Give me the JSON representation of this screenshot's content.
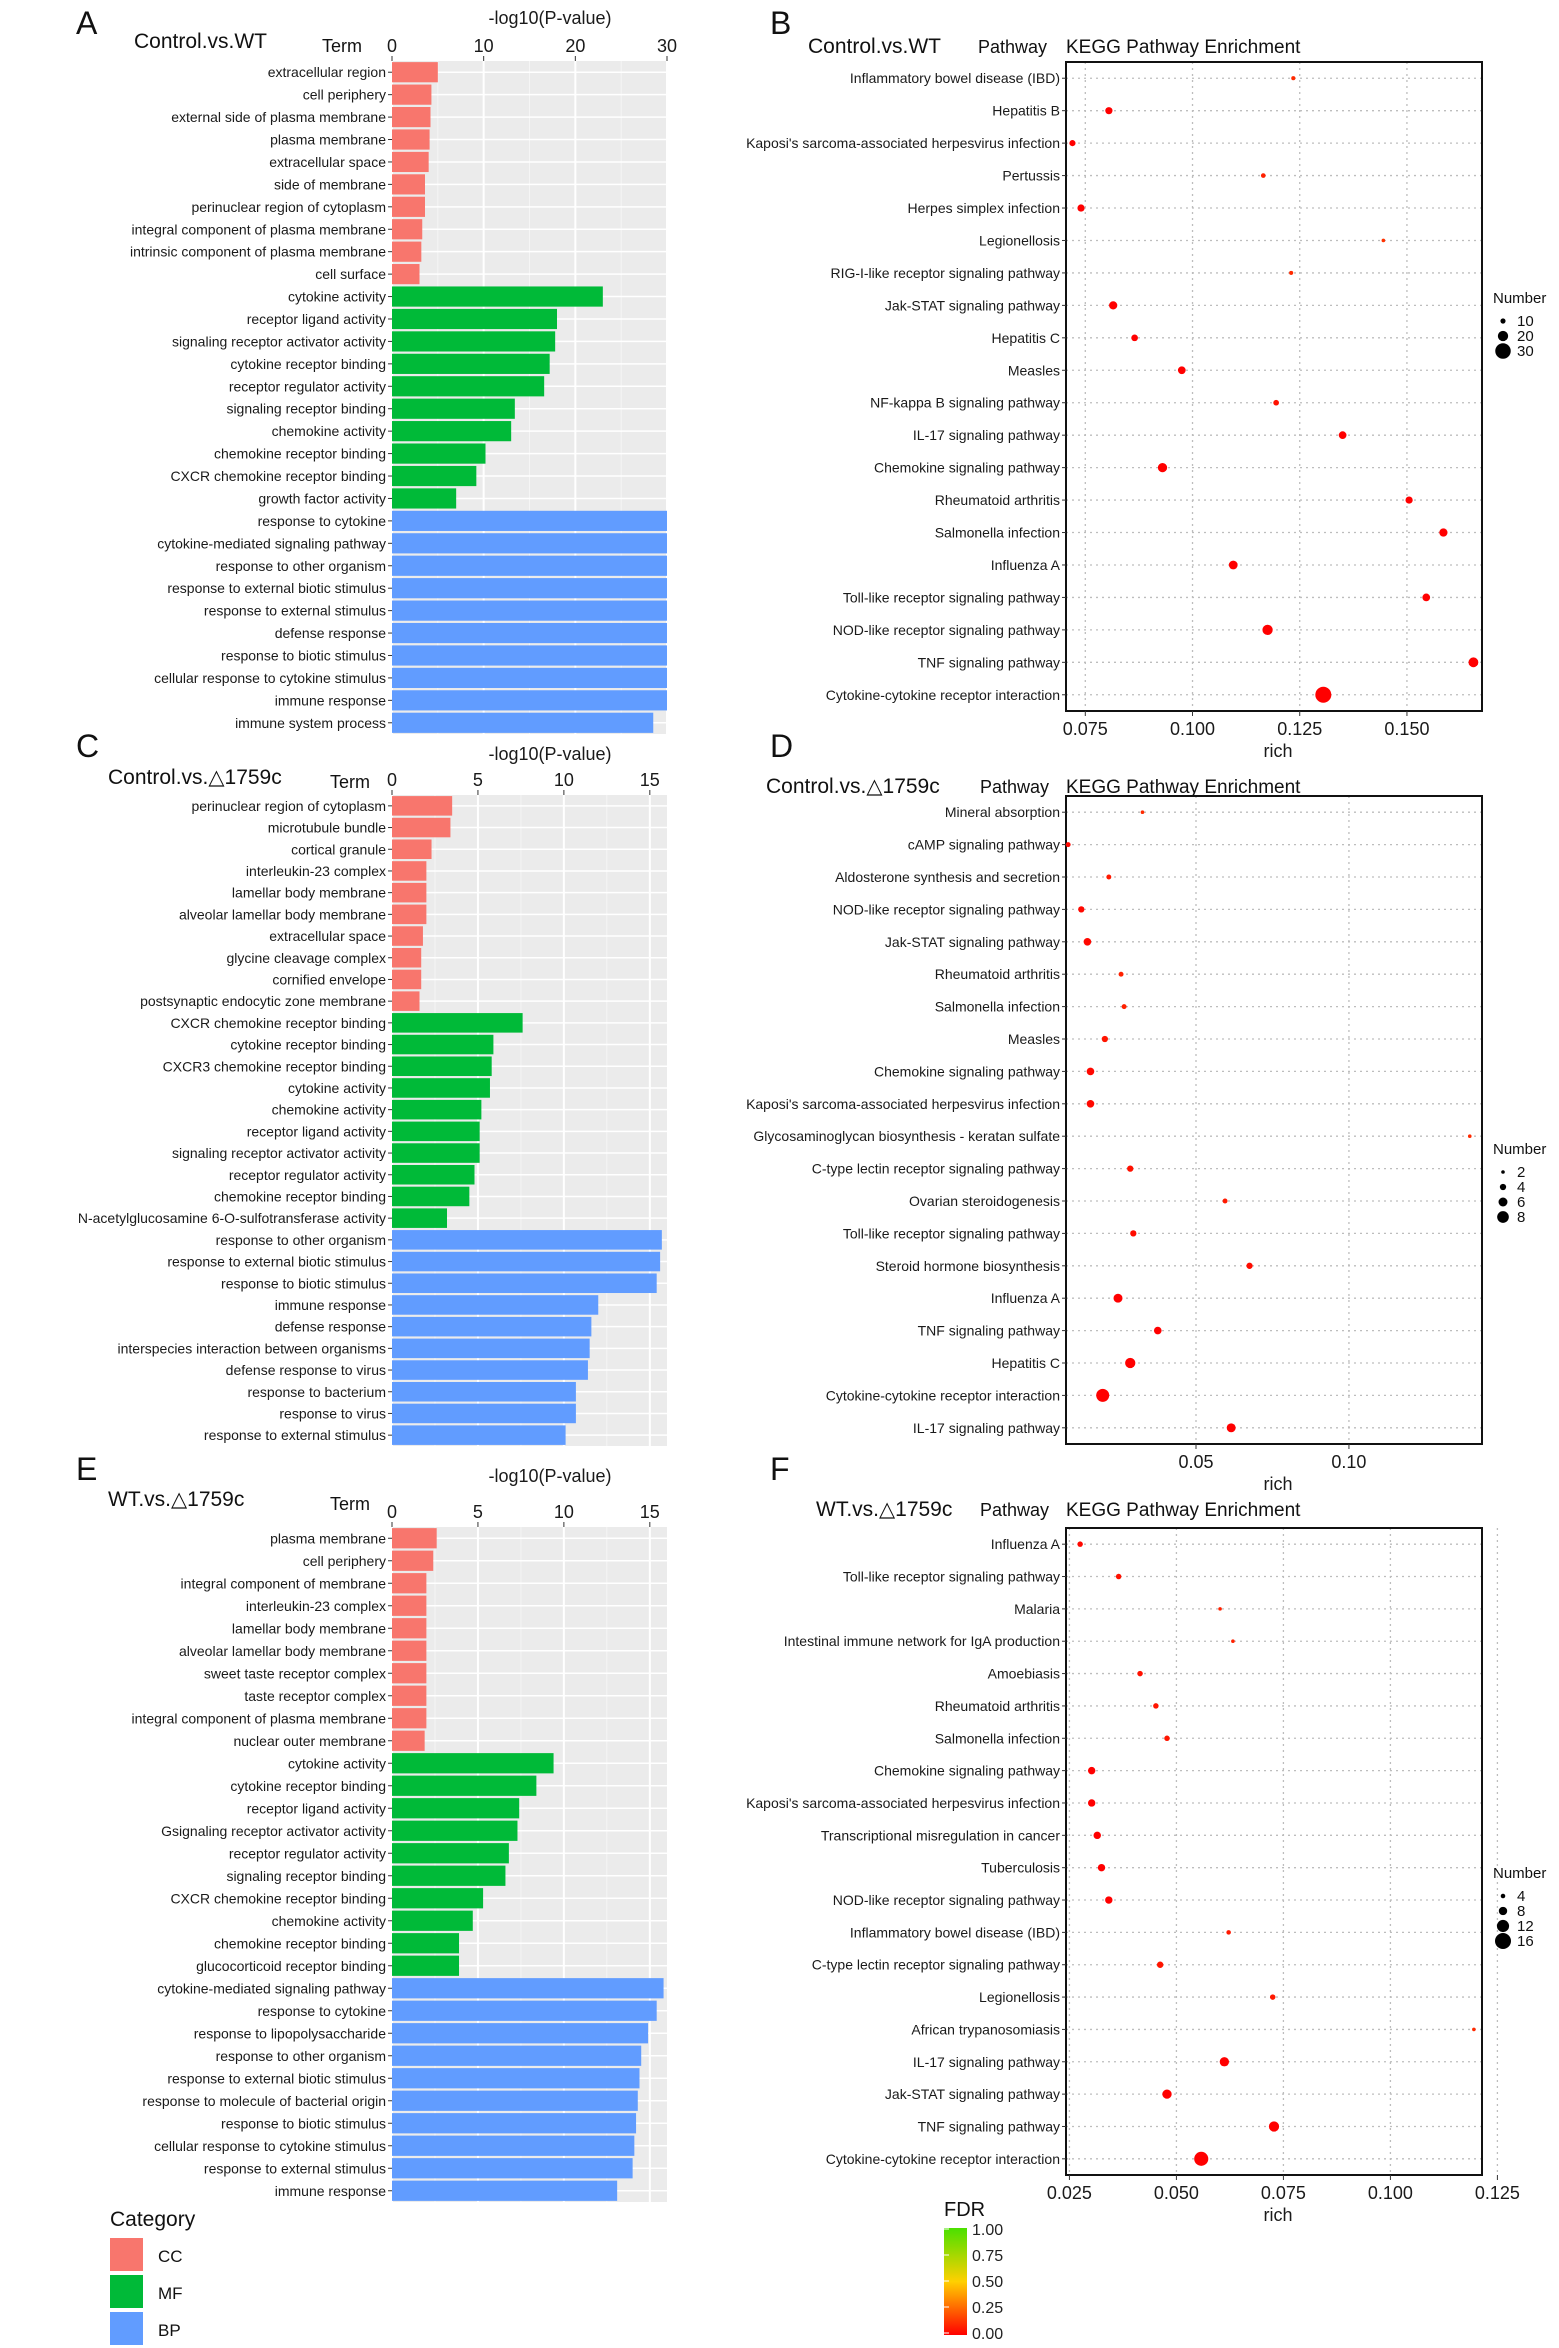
{
  "panels": {
    "A": "A",
    "B": "B",
    "C": "C",
    "D": "D",
    "E": "E",
    "F": "F"
  },
  "legend": {
    "category": {
      "title": "Category",
      "items": [
        {
          "label": "CC",
          "color": "#F8766D"
        },
        {
          "label": "MF",
          "color": "#00BA38"
        },
        {
          "label": "BP",
          "color": "#619CFF"
        }
      ]
    },
    "fdr": {
      "title": "FDR",
      "ticks": [
        "1.00",
        "0.75",
        "0.50",
        "0.25",
        "0.00"
      ],
      "colors": [
        "#4AE000",
        "#FFD000",
        "#FF0000"
      ]
    }
  },
  "chart_data": [
    {
      "id": "A",
      "type": "bar",
      "orientation": "horizontal",
      "title": "Control.vs.WT",
      "xlabel": "-log10(P-value)",
      "ylabel": "Term",
      "xlim": [
        0,
        30
      ],
      "xticks": [
        0,
        10,
        20,
        30
      ],
      "categories": [
        "extracellular region",
        "cell periphery",
        "external side of plasma membrane",
        "plasma membrane",
        "extracellular space",
        "side of membrane",
        "perinuclear region of cytoplasm",
        "integral component of plasma membrane",
        "intrinsic component of plasma membrane",
        "cell surface",
        "cytokine activity",
        "receptor ligand activity",
        "signaling receptor activator activity",
        "cytokine receptor binding",
        "receptor regulator activity",
        "signaling receptor binding",
        "chemokine activity",
        "chemokine receptor binding",
        "CXCR chemokine receptor binding",
        "growth factor activity",
        "response to cytokine",
        "cytokine-mediated signaling pathway",
        "response to other organism",
        "response to external biotic stimulus",
        "response to external stimulus",
        "defense response",
        "response to biotic stimulus",
        "cellular response to cytokine stimulus",
        "immune response",
        "immune system process"
      ],
      "values": [
        5.0,
        4.3,
        4.2,
        4.1,
        4.0,
        3.6,
        3.6,
        3.3,
        3.2,
        3.0,
        23.0,
        18.0,
        17.8,
        17.2,
        16.6,
        13.4,
        13.0,
        10.2,
        9.2,
        7.0,
        30.0,
        30.0,
        30.0,
        30.0,
        30.0,
        30.0,
        30.0,
        30.0,
        30.0,
        28.5
      ],
      "groups": [
        "CC",
        "CC",
        "CC",
        "CC",
        "CC",
        "CC",
        "CC",
        "CC",
        "CC",
        "CC",
        "MF",
        "MF",
        "MF",
        "MF",
        "MF",
        "MF",
        "MF",
        "MF",
        "MF",
        "MF",
        "BP",
        "BP",
        "BP",
        "BP",
        "BP",
        "BP",
        "BP",
        "BP",
        "BP",
        "BP"
      ]
    },
    {
      "id": "B",
      "type": "scatter",
      "title": "Control.vs.WT",
      "subtitle": "KEGG Pathway Enrichment",
      "xlabel": "rich",
      "ylabel": "Pathway",
      "xlim": [
        0.0705,
        0.1675
      ],
      "xticks": [
        0.075,
        0.1,
        0.125,
        0.15
      ],
      "xtick_labels": [
        "0.075",
        "0.100",
        "0.125",
        "0.150"
      ],
      "size_legend": {
        "title": "Number",
        "values": [
          10,
          20,
          30
        ]
      },
      "categories": [
        "Inflammatory bowel disease (IBD)",
        "Hepatitis B",
        "Kaposi's sarcoma-associated herpesvirus infection",
        "Pertussis",
        "Herpes simplex infection",
        "Legionellosis",
        "RIG-I-like receptor signaling pathway",
        "Jak-STAT signaling pathway",
        "Hepatitis C",
        "Measles",
        "NF-kappa B signaling pathway",
        "IL-17 signaling pathway",
        "Chemokine signaling pathway",
        "Rheumatoid arthritis",
        "Salmonella infection",
        "Influenza A",
        "Toll-like receptor signaling pathway",
        "NOD-like receptor signaling pathway",
        "TNF signaling pathway",
        "Cytokine-cytokine receptor interaction"
      ],
      "x": [
        0.1235,
        0.0805,
        0.072,
        0.1165,
        0.074,
        0.1445,
        0.123,
        0.0815,
        0.0865,
        0.0975,
        0.1195,
        0.135,
        0.093,
        0.1505,
        0.1585,
        0.1095,
        0.1545,
        0.1175,
        0.1655,
        0.1305
      ],
      "number": [
        8,
        14,
        12,
        9,
        14,
        7,
        8,
        16,
        13,
        15,
        11,
        15,
        18,
        14,
        16,
        17,
        15,
        20,
        19,
        31
      ],
      "fdr": [
        0.1,
        0.0,
        0.0,
        0.08,
        0.0,
        0.12,
        0.1,
        0.0,
        0.0,
        0.0,
        0.04,
        0.0,
        0.0,
        0.0,
        0.0,
        0.0,
        0.0,
        0.0,
        0.0,
        0.0
      ]
    },
    {
      "id": "C",
      "type": "bar",
      "orientation": "horizontal",
      "title": "Control.vs.△1759c",
      "xlabel": "-log10(P-value)",
      "ylabel": "Term",
      "xlim": [
        0,
        16
      ],
      "xticks": [
        0,
        5,
        10,
        15
      ],
      "categories": [
        "perinuclear region of cytoplasm",
        "microtubule bundle",
        "cortical granule",
        "interleukin-23 complex",
        "lamellar body membrane",
        "alveolar lamellar body membrane",
        "extracellular space",
        "glycine cleavage complex",
        "cornified envelope",
        "postsynaptic endocytic zone membrane",
        "CXCR chemokine receptor binding",
        "cytokine receptor binding",
        "CXCR3 chemokine receptor binding",
        "cytokine activity",
        "chemokine activity",
        "receptor ligand activity",
        "signaling receptor activator activity",
        "receptor regulator activity",
        "chemokine receptor binding",
        "N-acetylglucosamine 6-O-sulfotransferase activity",
        "response to other organism",
        "response to external biotic stimulus",
        "response to biotic stimulus",
        "immune response",
        "defense response",
        "interspecies interaction between organisms",
        "defense response to virus",
        "response to bacterium",
        "response to virus",
        "response to external stimulus"
      ],
      "values": [
        3.5,
        3.4,
        2.3,
        2.0,
        2.0,
        2.0,
        1.8,
        1.7,
        1.7,
        1.6,
        7.6,
        5.9,
        5.8,
        5.7,
        5.2,
        5.1,
        5.1,
        4.8,
        4.5,
        3.2,
        15.7,
        15.6,
        15.4,
        12.0,
        11.6,
        11.5,
        11.4,
        10.7,
        10.7,
        10.1
      ],
      "groups": [
        "CC",
        "CC",
        "CC",
        "CC",
        "CC",
        "CC",
        "CC",
        "CC",
        "CC",
        "CC",
        "MF",
        "MF",
        "MF",
        "MF",
        "MF",
        "MF",
        "MF",
        "MF",
        "MF",
        "MF",
        "BP",
        "BP",
        "BP",
        "BP",
        "BP",
        "BP",
        "BP",
        "BP",
        "BP",
        "BP"
      ]
    },
    {
      "id": "D",
      "type": "scatter",
      "title": "Control.vs.△1759c",
      "subtitle": "KEGG Pathway Enrichment",
      "xlabel": "rich",
      "ylabel": "Pathway",
      "xlim": [
        0.0075,
        0.1435
      ],
      "xticks": [
        0.05,
        0.1
      ],
      "xtick_labels": [
        "0.05",
        "0.10"
      ],
      "size_legend": {
        "title": "Number",
        "values": [
          2,
          4,
          6,
          8
        ]
      },
      "categories": [
        "Mineral absorption",
        "cAMP signaling pathway",
        "Aldosterone synthesis and secretion",
        "NOD-like receptor signaling pathway",
        "Jak-STAT signaling pathway",
        "Rheumatoid arthritis",
        "Salmonella infection",
        "Measles",
        "Chemokine signaling pathway",
        "Kaposi's sarcoma-associated herpesvirus infection",
        "Glycosaminoglycan biosynthesis - keratan sulfate",
        "C-type lectin receptor signaling pathway",
        "Ovarian steroidogenesis",
        "Toll-like receptor signaling pathway",
        "Steroid hormone biosynthesis",
        "Influenza A",
        "TNF signaling pathway",
        "Hepatitis C",
        "Cytokine-cytokine receptor interaction",
        "IL-17 signaling pathway"
      ],
      "x": [
        0.0325,
        0.0082,
        0.0215,
        0.0125,
        0.0145,
        0.0255,
        0.0265,
        0.0202,
        0.0155,
        0.0155,
        0.1395,
        0.0285,
        0.0595,
        0.0295,
        0.0675,
        0.0245,
        0.0375,
        0.0285,
        0.0195,
        0.0615
      ],
      "number": [
        2,
        3,
        3,
        4,
        5,
        3,
        3,
        4,
        5,
        5,
        2,
        4,
        3,
        4,
        4,
        6,
        5,
        7,
        9,
        6
      ],
      "fdr": [
        0.1,
        0.02,
        0.06,
        0.02,
        0.02,
        0.08,
        0.08,
        0.05,
        0.02,
        0.02,
        0.1,
        0.04,
        0.06,
        0.03,
        0.03,
        0.0,
        0.0,
        0.0,
        0.0,
        0.0
      ]
    },
    {
      "id": "E",
      "type": "bar",
      "orientation": "horizontal",
      "title": "WT.vs.△1759c",
      "xlabel": "-log10(P-value)",
      "ylabel": "Term",
      "xlim": [
        0,
        16
      ],
      "xticks": [
        0,
        5,
        10,
        15
      ],
      "categories": [
        "plasma membrane",
        "cell periphery",
        "integral component of membrane",
        "interleukin-23 complex",
        "lamellar body membrane",
        "alveolar lamellar body membrane",
        "sweet taste receptor complex",
        "taste receptor complex",
        "integral component of plasma membrane",
        "nuclear outer membrane",
        "cytokine activity",
        "cytokine receptor binding",
        "receptor ligand activity",
        "Gsignaling receptor activator activity",
        "receptor regulator activity",
        "signaling receptor binding",
        "CXCR chemokine receptor binding",
        "chemokine activity",
        "chemokine receptor binding",
        "glucocorticoid receptor binding",
        "cytokine-mediated signaling pathway",
        "response to cytokine",
        "response to lipopolysaccharide",
        "response to other organism",
        "response to external biotic stimulus",
        "response to molecule of bacterial origin",
        "response to biotic stimulus",
        "cellular response to cytokine stimulus",
        "response to external stimulus",
        "immune response"
      ],
      "values": [
        2.6,
        2.4,
        2.0,
        2.0,
        2.0,
        2.0,
        2.0,
        2.0,
        2.0,
        1.9,
        9.4,
        8.4,
        7.4,
        7.3,
        6.8,
        6.6,
        5.3,
        4.7,
        3.9,
        3.9,
        15.8,
        15.4,
        14.9,
        14.5,
        14.4,
        14.3,
        14.2,
        14.1,
        14.0,
        13.1
      ],
      "groups": [
        "CC",
        "CC",
        "CC",
        "CC",
        "CC",
        "CC",
        "CC",
        "CC",
        "CC",
        "CC",
        "MF",
        "MF",
        "MF",
        "MF",
        "MF",
        "MF",
        "MF",
        "MF",
        "MF",
        "MF",
        "BP",
        "BP",
        "BP",
        "BP",
        "BP",
        "BP",
        "BP",
        "BP",
        "BP",
        "BP"
      ]
    },
    {
      "id": "F",
      "type": "scatter",
      "title": "WT.vs.△1759c",
      "subtitle": "KEGG Pathway Enrichment",
      "xlabel": "rich",
      "ylabel": "Pathway",
      "xlim": [
        0.0242,
        0.1214
      ],
      "xticks": [
        0.025,
        0.05,
        0.075,
        0.1,
        0.125
      ],
      "xtick_labels": [
        "0.025",
        "0.050",
        "0.075",
        "0.100",
        "0.125"
      ],
      "size_legend": {
        "title": "Number",
        "values": [
          4,
          8,
          12,
          16
        ]
      },
      "categories": [
        "Influenza A",
        "Toll-like receptor signaling pathway",
        "Malaria",
        "Intestinal immune network for IgA production",
        "Amoebiasis",
        "Rheumatoid arthritis",
        "Salmonella infection",
        "Chemokine signaling pathway",
        "Kaposi's sarcoma-associated herpesvirus infection",
        "Transcriptional misregulation in cancer",
        "Tuberculosis",
        "NOD-like receptor signaling pathway",
        "Inflammatory bowel disease (IBD)",
        "C-type lectin receptor signaling pathway",
        "Legionellosis",
        "African trypanosomiasis",
        "IL-17 signaling pathway",
        "Jak-STAT signaling pathway",
        "TNF signaling pathway",
        "Cytokine-cytokine receptor interaction"
      ],
      "x": [
        0.0275,
        0.0365,
        0.0602,
        0.0632,
        0.0415,
        0.0452,
        0.0478,
        0.0302,
        0.0302,
        0.0315,
        0.0325,
        0.0342,
        0.0622,
        0.0462,
        0.0725,
        0.1195,
        0.0612,
        0.0478,
        0.0728,
        0.0558
      ],
      "number": [
        5,
        5,
        3,
        3,
        5,
        5,
        5,
        7,
        7,
        7,
        7,
        7,
        4,
        6,
        5,
        3,
        9,
        9,
        10,
        14
      ],
      "fdr": [
        0.02,
        0.04,
        0.08,
        0.08,
        0.04,
        0.05,
        0.05,
        0.0,
        0.0,
        0.0,
        0.0,
        0.0,
        0.06,
        0.05,
        0.06,
        0.1,
        0.0,
        0.0,
        0.0,
        0.0
      ]
    }
  ]
}
